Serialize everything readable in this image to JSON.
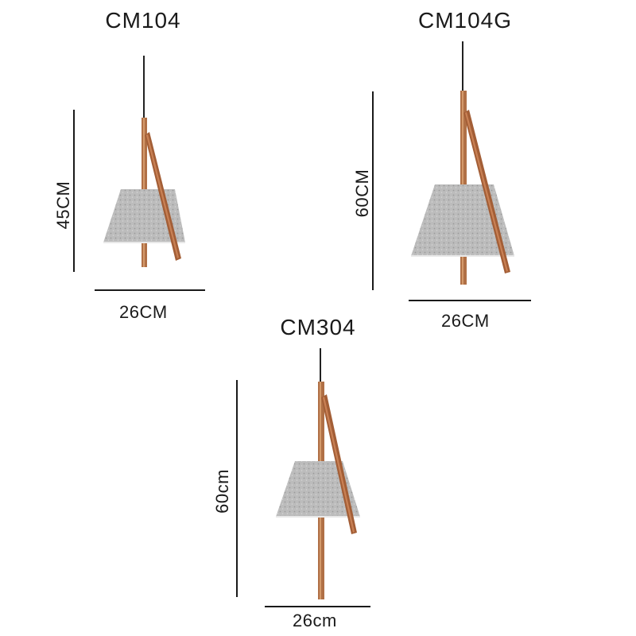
{
  "products": [
    {
      "model": "CM104",
      "height_label": "45CM",
      "width_label": "26CM"
    },
    {
      "model": "CM104G",
      "height_label": "60CM",
      "width_label": "26CM"
    },
    {
      "model": "CM304",
      "height_label": "60cm",
      "width_label": "26cm"
    }
  ],
  "colors": {
    "background": "#ffffff",
    "text": "#1a1a1a",
    "shade": "#b9b9b9",
    "wood": "#a8643c",
    "cord": "#222222"
  },
  "icons": [
    "pendant-lamp-image"
  ]
}
